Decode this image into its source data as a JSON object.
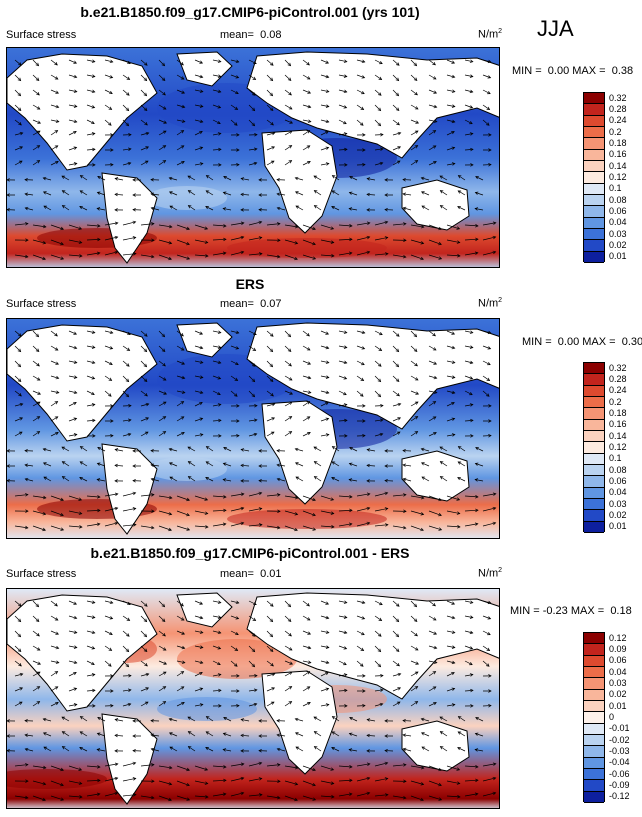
{
  "season": "JJA",
  "panels": [
    {
      "title": "b.e21.B1850.f09_g17.CMIP6-piControl.001 (yrs 101)",
      "field": "Surface stress",
      "mean_label": "mean=",
      "mean": "0.08",
      "units": "N/m",
      "units_exp": "2",
      "min_label": "MIN =",
      "min": "0.00",
      "max_label": "MAX =",
      "max": "0.38",
      "levels": [
        "0.32",
        "0.28",
        "0.24",
        "0.2",
        "0.18",
        "0.16",
        "0.14",
        "0.12",
        "0.1",
        "0.08",
        "0.06",
        "0.04",
        "0.03",
        "0.02",
        "0.01"
      ],
      "colors": [
        "#8b0000",
        "#c2241d",
        "#dd4a2f",
        "#ec6d49",
        "#f59474",
        "#f9b69b",
        "#fbd2bf",
        "#fdebe0",
        "#dfe9f6",
        "#bad3f0",
        "#8fb7ea",
        "#6096e2",
        "#3c72d8",
        "#2249c6",
        "#0d1f9e"
      ]
    },
    {
      "title": "ERS",
      "field": "Surface stress",
      "mean_label": "mean=",
      "mean": "0.07",
      "units": "N/m",
      "units_exp": "2",
      "min_label": "MIN =",
      "min": "0.00",
      "max_label": "MAX =",
      "max": "0.30",
      "levels": [
        "0.32",
        "0.28",
        "0.24",
        "0.2",
        "0.18",
        "0.16",
        "0.14",
        "0.12",
        "0.1",
        "0.08",
        "0.06",
        "0.04",
        "0.03",
        "0.02",
        "0.01"
      ],
      "colors": [
        "#8b0000",
        "#c2241d",
        "#dd4a2f",
        "#ec6d49",
        "#f59474",
        "#f9b69b",
        "#fbd2bf",
        "#fdebe0",
        "#dfe9f6",
        "#bad3f0",
        "#8fb7ea",
        "#6096e2",
        "#3c72d8",
        "#2249c6",
        "#0d1f9e"
      ]
    },
    {
      "title": "b.e21.B1850.f09_g17.CMIP6-piControl.001 - ERS",
      "field": "Surface stress",
      "mean_label": "mean=",
      "mean": "0.01",
      "units": "N/m",
      "units_exp": "2",
      "min_label": "MIN =",
      "min": "-0.23",
      "max_label": "MAX =",
      "max": "0.18",
      "levels": [
        "0.12",
        "0.09",
        "0.06",
        "0.04",
        "0.03",
        "0.02",
        "0.01",
        "0",
        "-0.01",
        "-0.02",
        "-0.03",
        "-0.04",
        "-0.06",
        "-0.09",
        "-0.12"
      ],
      "colors": [
        "#8b0000",
        "#c2241d",
        "#dd4a2f",
        "#ec6d49",
        "#f59474",
        "#f9b69b",
        "#fbd2bf",
        "#fdf1ea",
        "#dfe9f6",
        "#bad3f0",
        "#8fb7ea",
        "#6096e2",
        "#3c72d8",
        "#2249c6",
        "#0d1f9e"
      ]
    }
  ]
}
